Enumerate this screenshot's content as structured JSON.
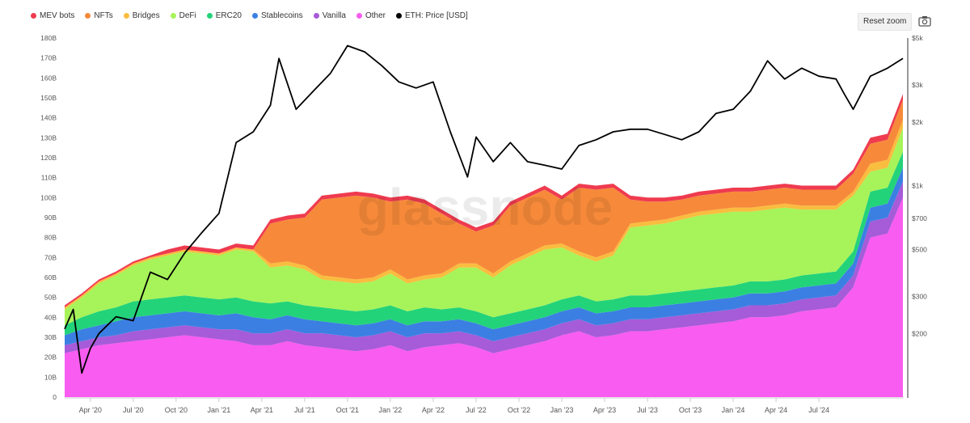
{
  "toolbar": {
    "reset_zoom_label": "Reset zoom"
  },
  "legend": [
    {
      "label": "MEV bots",
      "color": "#ef3b4f"
    },
    {
      "label": "NFTs",
      "color": "#f78a3a"
    },
    {
      "label": "Bridges",
      "color": "#f9bd3f"
    },
    {
      "label": "DeFi",
      "color": "#a7f35a"
    },
    {
      "label": "ERC20",
      "color": "#23d37a"
    },
    {
      "label": "Stablecoins",
      "color": "#3c7fe3"
    },
    {
      "label": "Vanilla",
      "color": "#a65bd8"
    },
    {
      "label": "Other",
      "color": "#f95cf0"
    },
    {
      "label": "ETH: Price [USD]",
      "color": "#000000"
    }
  ],
  "watermark": "glassnode",
  "chart_data": {
    "type": "area",
    "stacked": true,
    "x_ticks": [
      "Apr '20",
      "Jul '20",
      "Oct '20",
      "Jan '21",
      "Apr '21",
      "Jul '21",
      "Oct '21",
      "Jan '22",
      "Apr '22",
      "Jul '22",
      "Oct '22",
      "Jan '23",
      "Apr '23",
      "Jul '23",
      "Oct '23",
      "Jan '24",
      "Apr '24",
      "Jul '24"
    ],
    "y_ticks_left": [
      "0",
      "10B",
      "20B",
      "30B",
      "40B",
      "50B",
      "60B",
      "70B",
      "80B",
      "90B",
      "100B",
      "110B",
      "120B",
      "130B",
      "140B",
      "150B",
      "160B",
      "170B",
      "180B"
    ],
    "y_ticks_right": [
      "$200",
      "$300",
      "$500",
      "$700",
      "$1k",
      "$2k",
      "$3k",
      "$5k"
    ],
    "ylim_left": [
      0,
      180
    ],
    "ylim_right_log": [
      100,
      5000
    ],
    "xlim": [
      2020.1,
      2024.99
    ],
    "grid": false,
    "legend_position": "top-left",
    "x": [
      2020.1,
      2020.2,
      2020.3,
      2020.4,
      2020.5,
      2020.6,
      2020.7,
      2020.8,
      2020.9,
      2021.0,
      2021.1,
      2021.2,
      2021.3,
      2021.4,
      2021.5,
      2021.6,
      2021.7,
      2021.8,
      2021.9,
      2022.0,
      2022.1,
      2022.2,
      2022.3,
      2022.4,
      2022.5,
      2022.6,
      2022.7,
      2022.8,
      2022.9,
      2023.0,
      2023.1,
      2023.2,
      2023.3,
      2023.4,
      2023.5,
      2023.6,
      2023.7,
      2023.8,
      2023.9,
      2024.0,
      2024.1,
      2024.2,
      2024.3,
      2024.4,
      2024.5,
      2024.6,
      2024.7,
      2024.8,
      2024.9,
      2024.99
    ],
    "series": [
      {
        "name": "Other",
        "color": "#f95cf0",
        "values": [
          22,
          24,
          26,
          27,
          28,
          29,
          30,
          31,
          30,
          29,
          28,
          26,
          26,
          28,
          26,
          25,
          24,
          23,
          24,
          26,
          23,
          25,
          26,
          27,
          25,
          22,
          24,
          26,
          28,
          31,
          33,
          30,
          31,
          33,
          33,
          34,
          35,
          36,
          37,
          38,
          40,
          40,
          41,
          43,
          44,
          45,
          55,
          80,
          82,
          100
        ]
      },
      {
        "name": "Vanilla",
        "color": "#a65bd8",
        "values": [
          4,
          4,
          4,
          4,
          5,
          5,
          5,
          5,
          5,
          5,
          6,
          6,
          6,
          6,
          6,
          7,
          7,
          7,
          7,
          7,
          7,
          7,
          6,
          6,
          6,
          6,
          6,
          6,
          6,
          6,
          6,
          6,
          6,
          6,
          6,
          6,
          6,
          6,
          6,
          6,
          6,
          6,
          6,
          6,
          6,
          6,
          6,
          8,
          8,
          8
        ]
      },
      {
        "name": "Stablecoins",
        "color": "#3c7fe3",
        "values": [
          5,
          6,
          6,
          7,
          7,
          7,
          7,
          7,
          7,
          7,
          8,
          8,
          7,
          7,
          7,
          6,
          6,
          6,
          6,
          6,
          6,
          6,
          6,
          6,
          6,
          6,
          6,
          6,
          6,
          6,
          6,
          6,
          6,
          6,
          6,
          6,
          6,
          6,
          6,
          6,
          6,
          6,
          6,
          6,
          6,
          6,
          6,
          7,
          7,
          7
        ]
      },
      {
        "name": "ERC20",
        "color": "#23d37a",
        "values": [
          5,
          6,
          7,
          7,
          8,
          8,
          8,
          8,
          8,
          8,
          8,
          8,
          8,
          7,
          7,
          7,
          7,
          7,
          7,
          7,
          7,
          7,
          6,
          6,
          6,
          6,
          6,
          6,
          6,
          6,
          6,
          6,
          6,
          6,
          6,
          6,
          6,
          6,
          6,
          6,
          6,
          6,
          6,
          6,
          6,
          6,
          6,
          8,
          8,
          8
        ]
      },
      {
        "name": "DeFi",
        "color": "#a7f35a",
        "values": [
          8,
          10,
          14,
          16,
          18,
          20,
          21,
          22,
          22,
          22,
          24,
          25,
          18,
          18,
          18,
          14,
          14,
          14,
          14,
          16,
          14,
          14,
          16,
          20,
          22,
          20,
          24,
          26,
          28,
          26,
          20,
          20,
          22,
          34,
          35,
          35,
          36,
          37,
          37,
          37,
          35,
          36,
          36,
          33,
          32,
          31,
          28,
          10,
          10,
          12
        ]
      },
      {
        "name": "Bridges",
        "color": "#f9bd3f",
        "values": [
          1,
          1,
          1,
          1,
          1,
          1,
          1,
          1,
          1,
          1,
          1,
          1,
          2,
          2,
          2,
          2,
          2,
          2,
          2,
          2,
          2,
          2,
          2,
          2,
          2,
          2,
          2,
          2,
          2,
          2,
          2,
          2,
          2,
          2,
          2,
          2,
          2,
          2,
          2,
          2,
          2,
          2,
          2,
          2,
          2,
          2,
          2,
          4,
          4,
          4
        ]
      },
      {
        "name": "NFTs",
        "color": "#f78a3a",
        "values": [
          0,
          0,
          0,
          0,
          0,
          0,
          0,
          0,
          0,
          0,
          0,
          0,
          20,
          21,
          24,
          38,
          40,
          42,
          40,
          34,
          40,
          36,
          30,
          20,
          16,
          24,
          28,
          28,
          28,
          22,
          32,
          34,
          32,
          12,
          10,
          9,
          8,
          8,
          8,
          8,
          8,
          8,
          8,
          8,
          8,
          8,
          9,
          10,
          10,
          10
        ]
      },
      {
        "name": "MEV bots",
        "color": "#ef3b4f",
        "values": [
          1,
          1,
          1,
          1,
          1,
          1,
          2,
          2,
          2,
          2,
          2,
          2,
          2,
          2,
          2,
          2,
          2,
          2,
          2,
          2,
          2,
          2,
          2,
          2,
          2,
          2,
          2,
          2,
          2,
          2,
          2,
          2,
          2,
          2,
          2,
          2,
          2,
          2,
          2,
          2,
          2,
          2,
          2,
          2,
          2,
          2,
          2,
          3,
          3,
          3
        ]
      }
    ],
    "price": {
      "name": "ETH: Price [USD]",
      "axis": "right",
      "color": "#000000",
      "x": [
        2020.1,
        2020.15,
        2020.2,
        2020.25,
        2020.3,
        2020.4,
        2020.5,
        2020.6,
        2020.7,
        2020.8,
        2020.9,
        2021.0,
        2021.1,
        2021.2,
        2021.3,
        2021.35,
        2021.45,
        2021.55,
        2021.65,
        2021.75,
        2021.85,
        2021.95,
        2022.05,
        2022.15,
        2022.25,
        2022.35,
        2022.45,
        2022.5,
        2022.6,
        2022.7,
        2022.8,
        2022.9,
        2023.0,
        2023.1,
        2023.2,
        2023.3,
        2023.4,
        2023.5,
        2023.6,
        2023.7,
        2023.8,
        2023.9,
        2024.0,
        2024.1,
        2024.2,
        2024.3,
        2024.4,
        2024.5,
        2024.6,
        2024.65,
        2024.7,
        2024.8,
        2024.9,
        2024.99
      ],
      "values": [
        210,
        260,
        130,
        170,
        200,
        240,
        230,
        390,
        360,
        480,
        600,
        740,
        1600,
        1800,
        2400,
        4000,
        2300,
        2800,
        3400,
        4600,
        4300,
        3700,
        3100,
        2900,
        3100,
        1800,
        1100,
        1700,
        1300,
        1600,
        1300,
        1250,
        1200,
        1550,
        1650,
        1800,
        1850,
        1850,
        1750,
        1650,
        1800,
        2200,
        2300,
        2800,
        3900,
        3200,
        3600,
        3300,
        3200,
        2700,
        2300,
        3300,
        3600,
        4000
      ]
    }
  }
}
